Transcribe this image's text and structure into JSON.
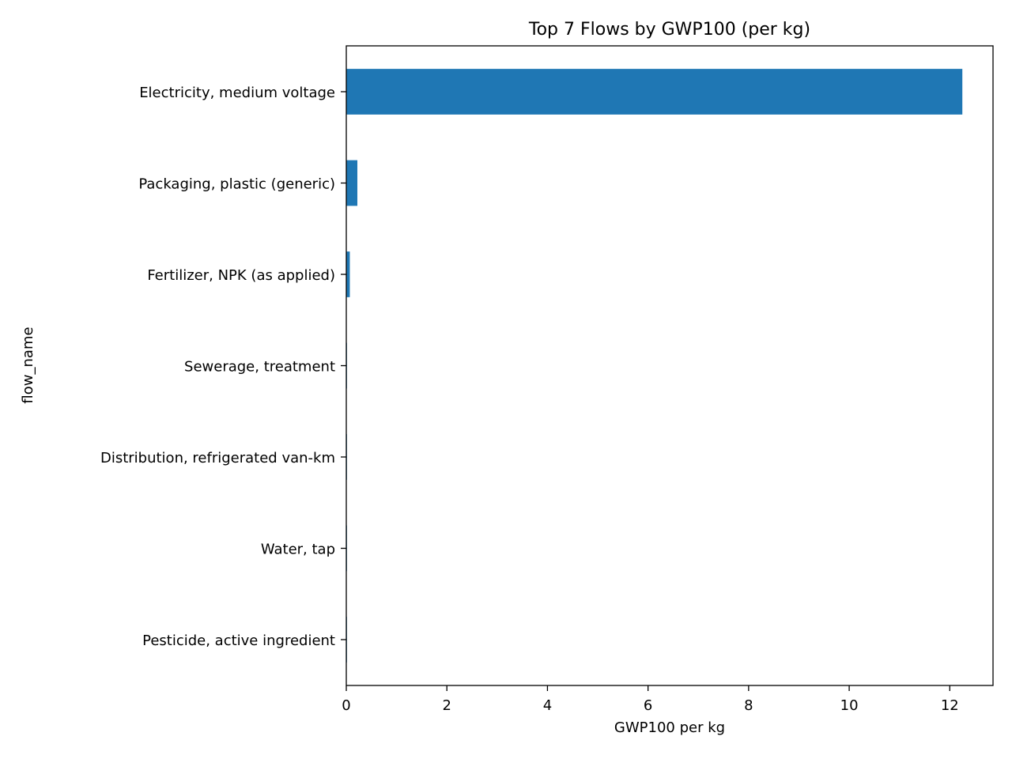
{
  "chart_data": {
    "type": "bar",
    "orientation": "horizontal",
    "title": "Top 7 Flows by GWP100 (per kg)",
    "xlabel": "GWP100 per kg",
    "ylabel": "flow_name",
    "categories": [
      "Electricity, medium voltage",
      "Packaging, plastic (generic)",
      "Fertilizer, NPK (as applied)",
      "Sewerage, treatment",
      "Distribution, refrigerated van-km",
      "Water, tap",
      "Pesticide, active ingredient"
    ],
    "values": [
      12.25,
      0.22,
      0.07,
      0.01,
      0.005,
      0.003,
      0.002
    ],
    "xlim": [
      0,
      12.86
    ],
    "xticks": [
      0,
      2,
      4,
      6,
      8,
      10,
      12
    ],
    "bar_color": "#1f77b4",
    "grid": false,
    "legend": "none"
  }
}
